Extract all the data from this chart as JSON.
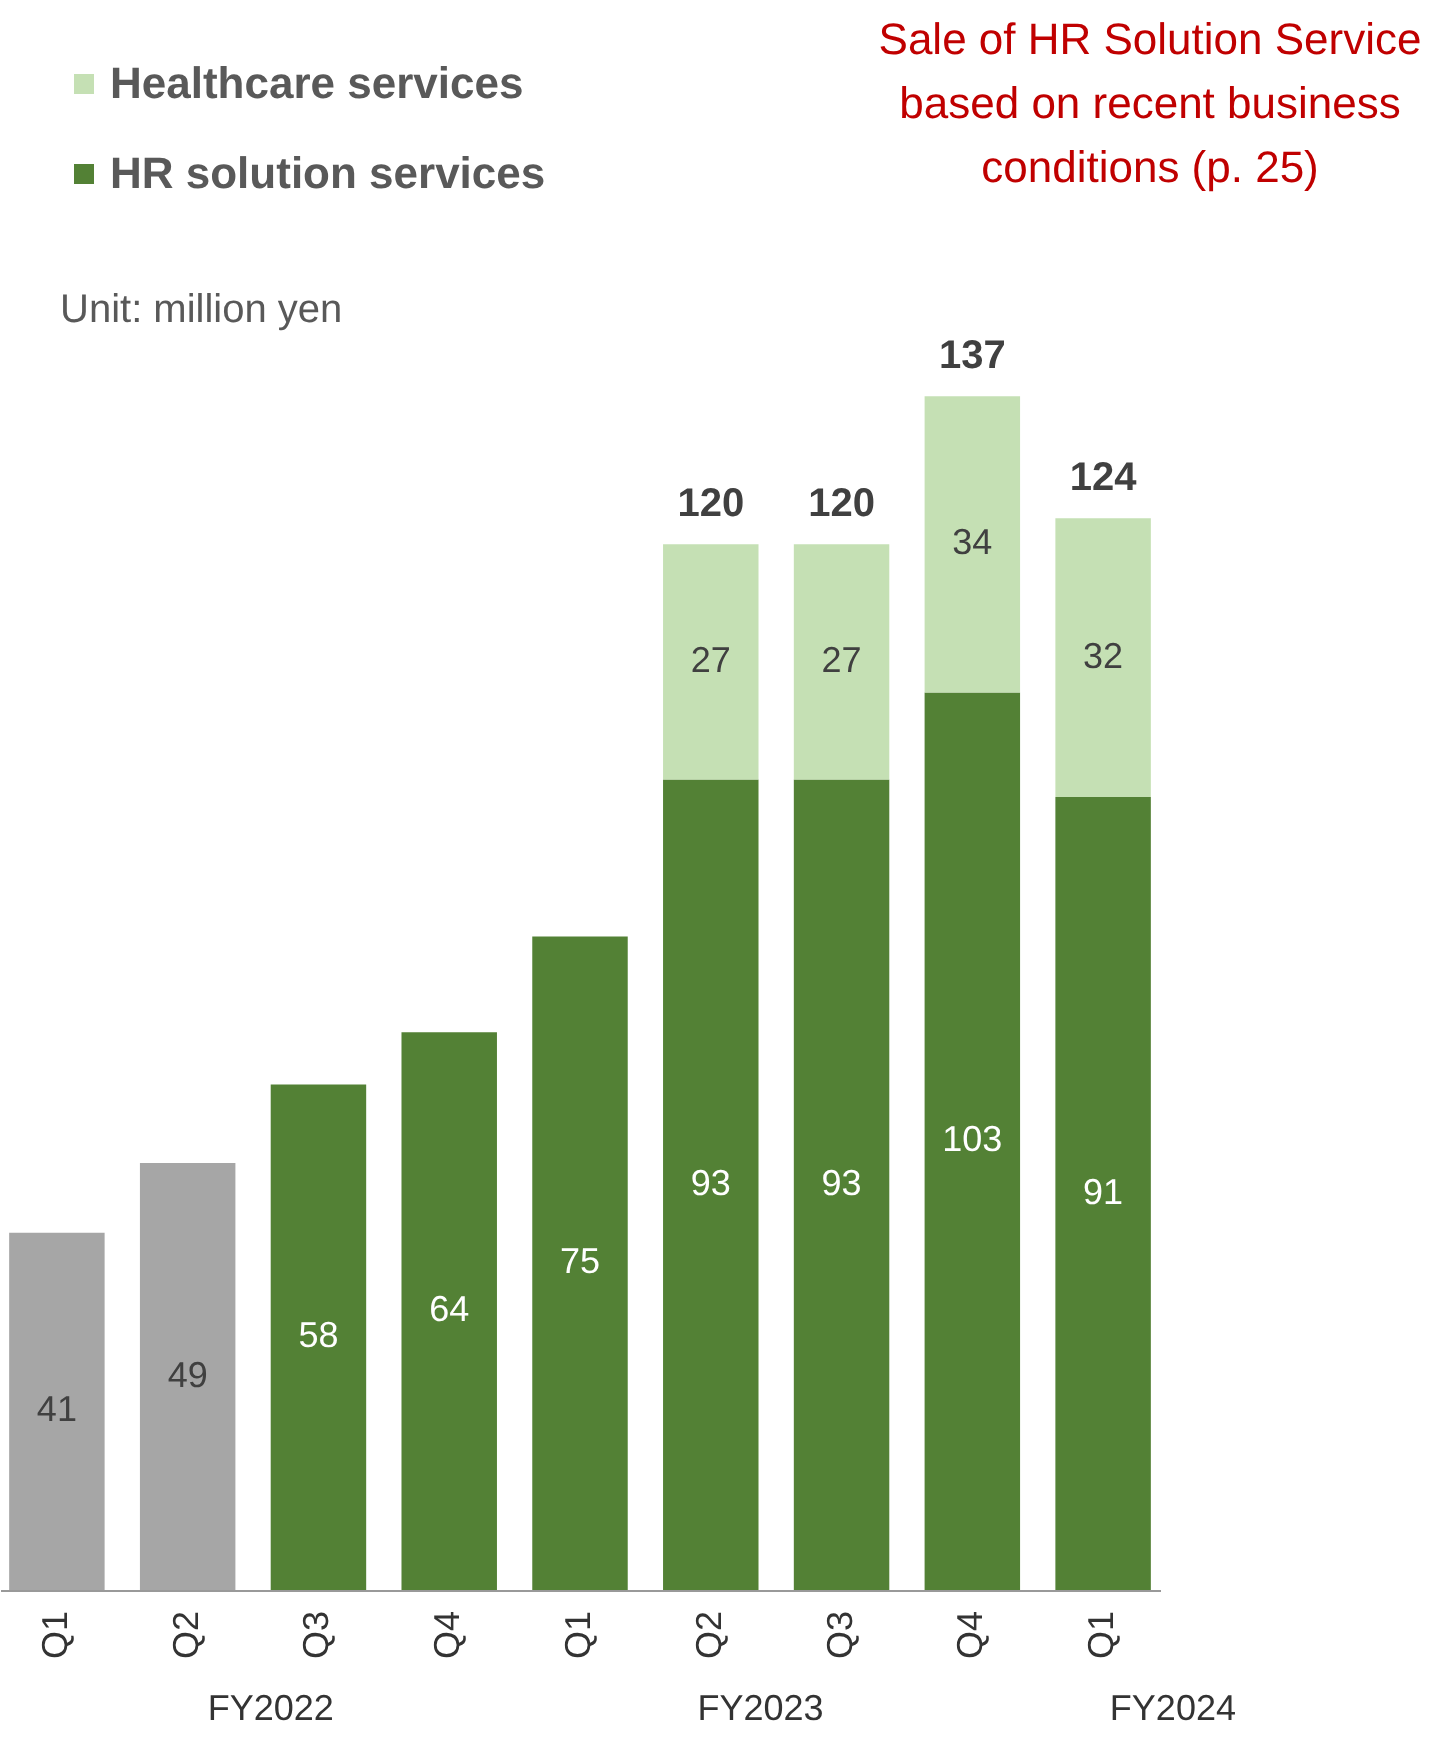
{
  "chart_data": {
    "type": "bar",
    "stacked": true,
    "data_labels": true,
    "legend": "top left",
    "grid": false,
    "categories": [
      "Q1",
      "Q2",
      "Q3",
      "Q4",
      "Q1",
      "Q2",
      "Q3",
      "Q4",
      "Q1"
    ],
    "series": [
      {
        "name": "HR solution services",
        "color": "#538135",
        "colors": [
          "#a6a6a6",
          "#a6a6a6",
          "#538135",
          "#538135",
          "#538135",
          "#538135",
          "#538135",
          "#538135",
          "#538135"
        ],
        "values": [
          41,
          49,
          58,
          64,
          75,
          93,
          93,
          103,
          91
        ]
      },
      {
        "name": "Healthcare services",
        "color": "#c5e0b4",
        "values": [
          null,
          null,
          null,
          null,
          null,
          27,
          27,
          34,
          32
        ]
      }
    ],
    "totals": [
      null,
      null,
      null,
      null,
      null,
      "120",
      "120",
      "137",
      "124"
    ],
    "annotations": [
      "Unit: million yen",
      "Sale of HR Solution Service based on recent business conditions (p. 25)",
      "FY2022",
      "FY2023",
      "FY2024"
    ]
  }
}
